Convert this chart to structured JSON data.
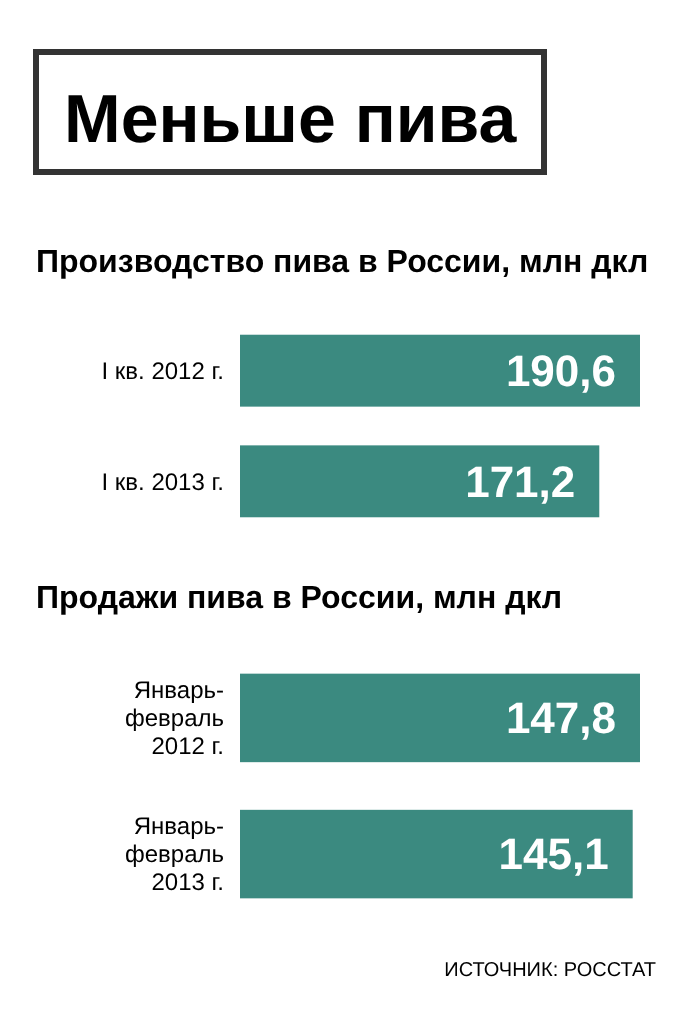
{
  "chart_data": [
    {
      "type": "bar",
      "orientation": "horizontal",
      "title": "Меньше пива",
      "subtitle": "Производство пива в России, млн дкл",
      "categories": [
        "I кв. 2012 г.",
        "I кв. 2013 г."
      ],
      "values": [
        190.6,
        171.2
      ],
      "value_labels": [
        "190,6",
        "171,2"
      ],
      "color": "#3b8a80"
    },
    {
      "type": "bar",
      "orientation": "horizontal",
      "title": "Продажи пива в России, млн дкл",
      "categories": [
        "Январь-февраль 2012 г.",
        "Январь-февраль 2013 г."
      ],
      "values": [
        147.8,
        145.1
      ],
      "value_labels": [
        "147,8",
        "145,1"
      ],
      "color": "#3b8a80",
      "annotations": [
        "ИСТОЧНИК: РОССТАТ"
      ]
    }
  ]
}
